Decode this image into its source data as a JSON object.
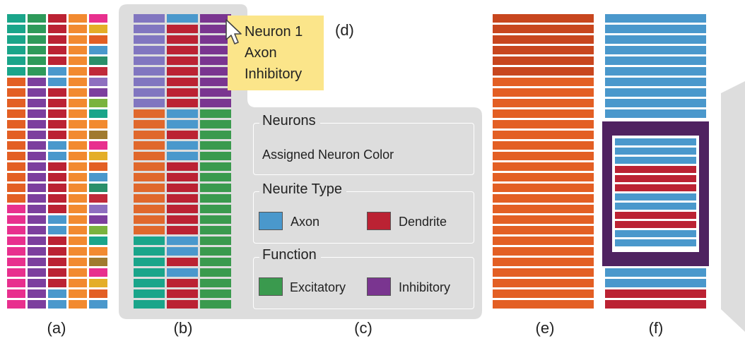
{
  "colors": {
    "axon": "#4a98cc",
    "dendrite": "#bb2233",
    "excitatory": "#3a9a4e",
    "inhibitory": "#7a3590",
    "panel_bg": "#dddddd",
    "tooltip_bg": "#fbe58a",
    "neuron_orange": "#e35f24",
    "selection_frame": "#4f2260"
  },
  "tooltip": {
    "lines": [
      "Neuron 1",
      "Axon",
      "Inhibitory"
    ]
  },
  "panel_labels": {
    "a": "(a)",
    "b": "(b)",
    "c": "(c)",
    "d": "(d)",
    "e": "(e)",
    "f": "(f)"
  },
  "legend": {
    "neurons": {
      "title": "Neurons",
      "text": "Assigned Neuron Color"
    },
    "neurite_type": {
      "title": "Neurite Type",
      "items": [
        "Axon",
        "Dendrite"
      ]
    },
    "function": {
      "title": "Function",
      "items": [
        "Excitatory",
        "Inhibitory"
      ]
    }
  },
  "icons": {
    "cursor": "mouse-pointer-icon"
  }
}
